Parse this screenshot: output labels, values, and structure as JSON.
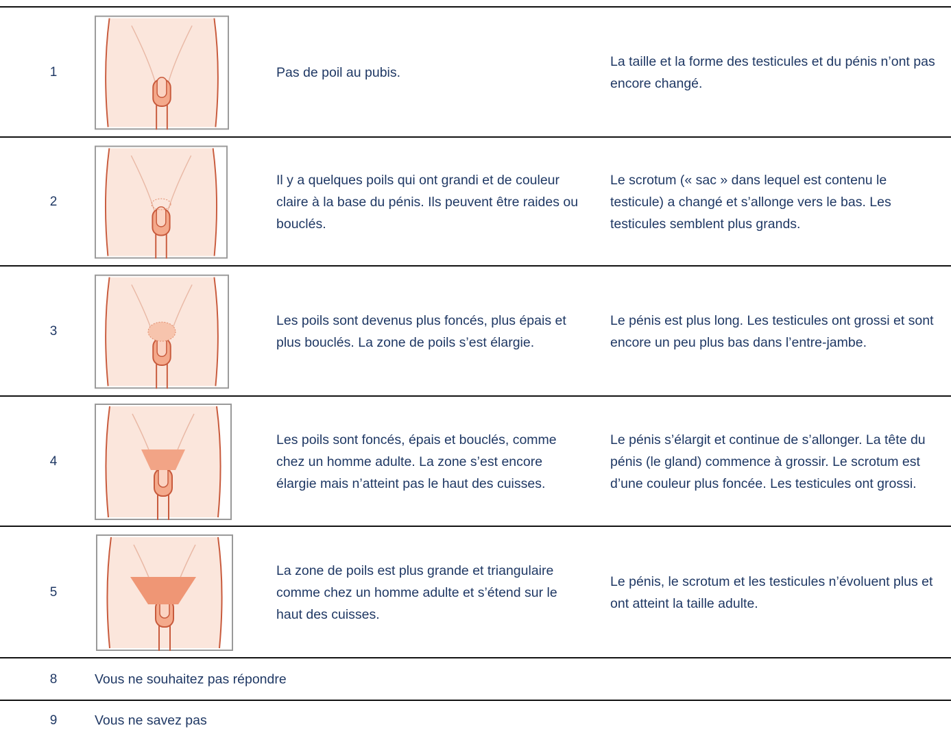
{
  "table": {
    "rows": [
      {
        "number": "1",
        "hair": "Pas de poil au pubis.",
        "genitals": "La taille et la forme des testicules et du pénis n’ont pas encore changé."
      },
      {
        "number": "2",
        "hair": "Il y a quelques poils qui ont grandi et de couleur claire à la base du pénis. Ils peuvent être raides ou bouclés.",
        "genitals": "Le scrotum (« sac » dans lequel est contenu le testicule) a changé et s’allonge vers le bas. Les testicules semblent plus grands."
      },
      {
        "number": "3",
        "hair": "Les poils sont devenus plus foncés, plus épais et plus bouclés. La zone de poils s’est élargie.",
        "genitals": "Le pénis est plus long. Les testicules ont grossi et sont encore un peu plus bas dans l’entre-jambe."
      },
      {
        "number": "4",
        "hair": "Les poils sont foncés, épais et bouclés, comme chez un homme adulte. La zone s’est encore élargie mais n’atteint pas le haut des cuisses.",
        "genitals": "Le pénis s’élargit et continue de s’allonger. La tête du pénis (le gland) commence à grossir. Le scrotum est d’une couleur plus foncée. Les testicules ont grossi."
      },
      {
        "number": "5",
        "hair": "La zone de poils est plus grande et triangulaire comme chez un homme adulte et s’étend sur le haut des cuisses.",
        "genitals": "Le pénis, le scrotum et les testicules n’évoluent plus et ont atteint la taille adulte."
      }
    ],
    "options": [
      {
        "number": "8",
        "label": "Vous ne souhaitez pas répondre"
      },
      {
        "number": "9",
        "label": "Vous ne savez pas"
      }
    ]
  }
}
